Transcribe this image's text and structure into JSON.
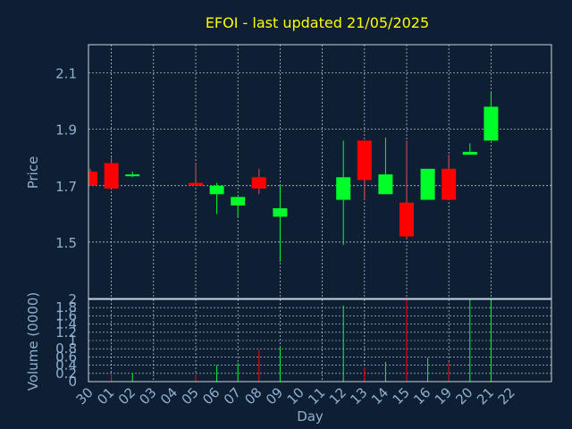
{
  "chart_data": {
    "type": "candlestick",
    "title": "EFOI - last updated 21/05/2025",
    "xlabel": "Day",
    "ylabel": "Price",
    "volume_label": "Volume (0000)",
    "grid": true,
    "price_ylim": [
      1.3,
      2.2
    ],
    "price_ticks": [
      "1.5",
      "1.7",
      "1.9",
      "2.1"
    ],
    "volume_ylim": [
      0,
      2.0
    ],
    "volume_ticks": [
      "0",
      "0.2",
      "0.4",
      "0.6",
      "0.8",
      "1",
      "1.2",
      "1.4",
      "1.6",
      "1.8",
      "2"
    ],
    "x_ticks": [
      "30",
      "01",
      "02",
      "03",
      "04",
      "05",
      "06",
      "07",
      "08",
      "09",
      "10",
      "11",
      "12",
      "13",
      "14",
      "15",
      "16",
      "19",
      "20",
      "21",
      "22"
    ],
    "candles": [
      {
        "day": "30",
        "open": 1.75,
        "high": 1.76,
        "low": 1.7,
        "close": 1.7,
        "volume": 0.0
      },
      {
        "day": "01",
        "open": 1.78,
        "high": 1.8,
        "low": 1.69,
        "close": 1.69,
        "volume": 0.18
      },
      {
        "day": "02",
        "open": 1.74,
        "high": 1.75,
        "low": 1.73,
        "close": 1.74,
        "volume": 0.2
      },
      {
        "day": "05",
        "open": 1.71,
        "high": 1.78,
        "low": 1.7,
        "close": 1.7,
        "volume": 0.18
      },
      {
        "day": "06",
        "open": 1.67,
        "high": 1.71,
        "low": 1.6,
        "close": 1.7,
        "volume": 0.4
      },
      {
        "day": "07",
        "open": 1.63,
        "high": 1.66,
        "low": 1.59,
        "close": 1.66,
        "volume": 0.45
      },
      {
        "day": "08",
        "open": 1.73,
        "high": 1.76,
        "low": 1.67,
        "close": 1.69,
        "volume": 0.78
      },
      {
        "day": "09",
        "open": 1.59,
        "high": 1.7,
        "low": 1.43,
        "close": 1.62,
        "volume": 0.82
      },
      {
        "day": "12",
        "open": 1.65,
        "high": 1.86,
        "low": 1.49,
        "close": 1.73,
        "volume": 1.85
      },
      {
        "day": "13",
        "open": 1.86,
        "high": 1.86,
        "low": 1.65,
        "close": 1.72,
        "volume": 0.35
      },
      {
        "day": "14",
        "open": 1.67,
        "high": 1.87,
        "low": 1.67,
        "close": 1.74,
        "volume": 0.48
      },
      {
        "day": "15",
        "open": 1.64,
        "high": 1.86,
        "low": 1.51,
        "close": 1.52,
        "volume": 2.0
      },
      {
        "day": "16",
        "open": 1.65,
        "high": 1.76,
        "low": 1.65,
        "close": 1.76,
        "volume": 0.58
      },
      {
        "day": "19",
        "open": 1.76,
        "high": 1.81,
        "low": 1.65,
        "close": 1.65,
        "volume": 0.48
      },
      {
        "day": "20",
        "open": 1.81,
        "high": 1.85,
        "low": 1.81,
        "close": 1.82,
        "volume": 2.0
      },
      {
        "day": "21",
        "open": 1.86,
        "high": 2.03,
        "low": 1.86,
        "close": 1.98,
        "volume": 2.0
      }
    ]
  },
  "colors": {
    "background": "#0f1f33",
    "title": "#ffff00",
    "axis_text": "#8fb0d0",
    "grid": "#c8d4e2",
    "up": "#00ff2a",
    "down": "#ff0000",
    "wick": "#d85050"
  }
}
